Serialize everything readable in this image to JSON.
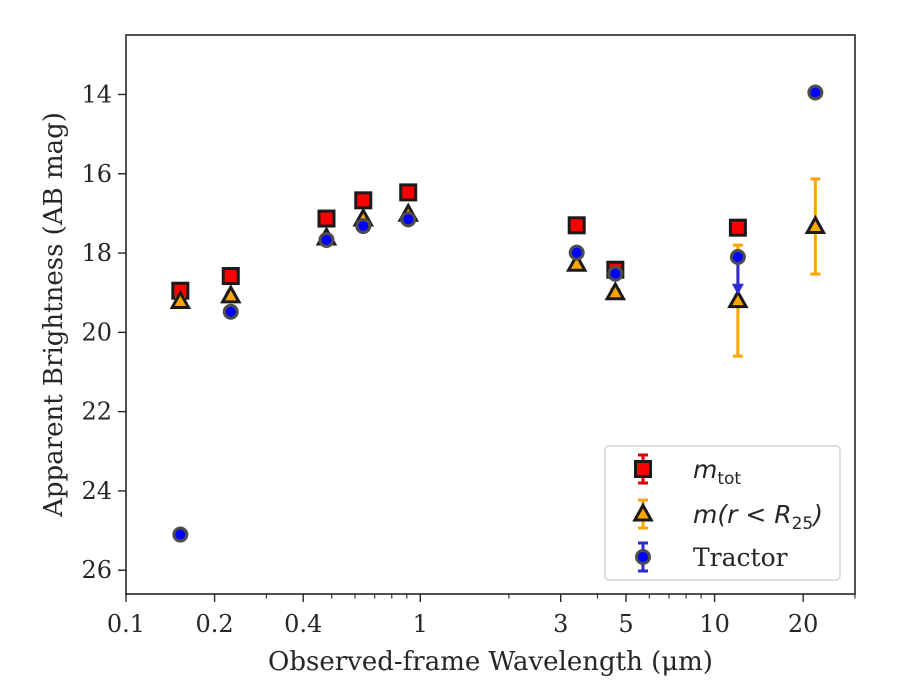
{
  "chart_data": {
    "type": "scatter",
    "xlabel": "Observed-frame Wavelength (μm)",
    "ylabel": "Apparent Brightness (AB mag)",
    "x_scale": "log",
    "xlim": [
      0.1,
      30
    ],
    "ylim": [
      26.6,
      12.5
    ],
    "y_inverted": true,
    "x_ticks": [
      0.1,
      0.2,
      0.4,
      1,
      3,
      5,
      10,
      20
    ],
    "x_tick_labels": [
      "0.1",
      "0.2",
      "0.4",
      "1",
      "3",
      "5",
      "10",
      "20"
    ],
    "y_ticks": [
      14,
      16,
      18,
      20,
      22,
      24,
      26
    ],
    "y_tick_labels": [
      "14",
      "16",
      "18",
      "20",
      "22",
      "24",
      "26"
    ],
    "grid": false,
    "legend_position": "bottom-right",
    "series": [
      {
        "name": "m_tot",
        "label_main": "m",
        "label_sub": "tot",
        "marker": "square",
        "color": "#ff0000",
        "edge": "#1a1a1a",
        "errcolor": "#e00000",
        "points": [
          {
            "x": 0.153,
            "y": 18.95,
            "err": 0.08
          },
          {
            "x": 0.227,
            "y": 18.58,
            "err": 0.06
          },
          {
            "x": 0.48,
            "y": 17.13,
            "err": 0.04
          },
          {
            "x": 0.64,
            "y": 16.67,
            "err": 0.04
          },
          {
            "x": 0.91,
            "y": 16.47,
            "err": 0.04
          },
          {
            "x": 3.4,
            "y": 17.3,
            "err": 0.04
          },
          {
            "x": 4.6,
            "y": 18.42,
            "err": 0.04
          },
          {
            "x": 12.0,
            "y": 17.36,
            "err": 0.04
          }
        ]
      },
      {
        "name": "m(r < R25)",
        "label_main": "m(r < R",
        "label_sub": "25",
        "label_tail": ")",
        "marker": "triangle",
        "color": "#ffa500",
        "edge": "#1a1a1a",
        "errcolor": "#ffa500",
        "points": [
          {
            "x": 0.153,
            "y": 19.22,
            "err": 0.08
          },
          {
            "x": 0.227,
            "y": 19.08,
            "err": 0.08
          },
          {
            "x": 0.48,
            "y": 17.62,
            "err": 0.05
          },
          {
            "x": 0.64,
            "y": 17.14,
            "err": 0.05
          },
          {
            "x": 0.91,
            "y": 17.02,
            "err": 0.05
          },
          {
            "x": 3.4,
            "y": 18.28,
            "err": 0.06
          },
          {
            "x": 4.6,
            "y": 19.0,
            "err": 0.08
          },
          {
            "x": 12.0,
            "y": 19.2,
            "err": 1.4
          },
          {
            "x": 22.0,
            "y": 17.33,
            "err": 1.2
          }
        ]
      },
      {
        "name": "Tractor",
        "label_main": "Tractor",
        "marker": "circle",
        "color": "#0000ff",
        "edge": "#4d4d4d",
        "errcolor": "#2b2bd6",
        "points": [
          {
            "x": 0.153,
            "y": 25.1,
            "err": 0.06
          },
          {
            "x": 0.227,
            "y": 19.48,
            "err": 0.06
          },
          {
            "x": 0.48,
            "y": 17.67,
            "err": 0.04
          },
          {
            "x": 0.64,
            "y": 17.32,
            "err": 0.04
          },
          {
            "x": 0.91,
            "y": 17.15,
            "err": 0.04
          },
          {
            "x": 3.4,
            "y": 17.99,
            "err": 0.04
          },
          {
            "x": 4.6,
            "y": 18.52,
            "err": 0.05
          },
          {
            "x": 12.0,
            "y": 18.1,
            "err": 0.04,
            "upper_limit": true
          },
          {
            "x": 22.0,
            "y": 13.95,
            "err": 0.04
          }
        ]
      }
    ]
  }
}
